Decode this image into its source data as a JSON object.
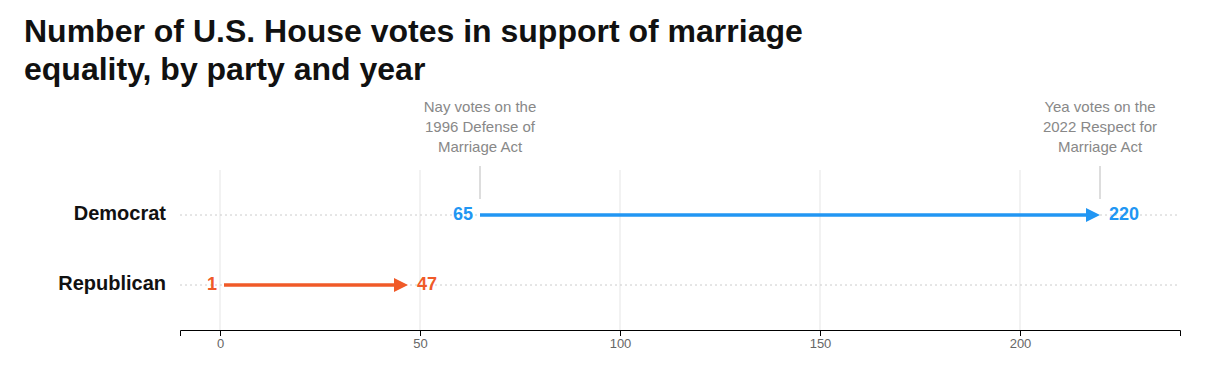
{
  "chart_data": {
    "type": "arrow",
    "orientation": "horizontal",
    "title": "Number of U.S. House votes in support of marriage\nequality, by party and year",
    "categories": [
      "Democrat",
      "Republican"
    ],
    "colors": [
      "#2196f3",
      "#f05a28"
    ],
    "series": [
      {
        "values": [
          65,
          1
        ]
      },
      {
        "values": [
          220,
          47
        ]
      }
    ],
    "data_labels": true,
    "annotations": [
      {
        "x": 65,
        "text": "Nay votes on the\n1996 Defense of\nMarriage Act"
      },
      {
        "x": 220,
        "text": "Yea votes on the\n2022 Respect for\nMarriage Act"
      }
    ],
    "xlim": [
      -10,
      240
    ],
    "xticks": [
      0,
      50,
      100,
      150,
      200
    ],
    "grid": true
  }
}
